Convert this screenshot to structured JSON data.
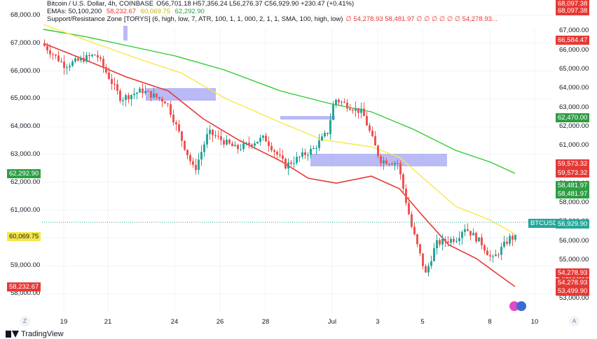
{
  "legend": {
    "line1": "Bitcoin / U.S. Dollar, 4h, COINBASE",
    "ohlc": "O56,701.18 H57,356.24 L56,276.37 C56,929.90 +230.47 (+0.41%)",
    "emas_label": "EMAs: 50,100,200",
    "ema_values": [
      "58,232.67",
      "60,069.75",
      "62,292.90"
    ],
    "line3": "Support/Resistance Zone [TORYS] (6, high, low, 7, ATR, 100, 1, 1, 000, 2, 1, 1, SMA, 100, high, low)",
    "sr_values": "∅ 54,278.93 58,481.97 ∅ ∅ ∅ ∅ ∅ ∅ 54,278.93..."
  },
  "y_axis": [
    "68,000.00",
    "67,000.00",
    "66,000.00",
    "65,000.00",
    "64,000.00",
    "63,000.00",
    "62,000.00",
    "61,000.00",
    "60,000.00",
    "59,000.00",
    "58,000.00",
    "57,000.00",
    "56,000.00",
    "55,000.00",
    "54,000.00",
    "53,000.00"
  ],
  "left_axis": [
    "68,000.00",
    "67,000.00",
    "66,000.00",
    "65,000.00",
    "64,000.00",
    "63,000.00",
    "62,000.00",
    "61,000.00",
    "60,000.00",
    "59,000.00",
    "58,000.00"
  ],
  "x_axis": [
    "19",
    "21",
    "24",
    "26",
    "28",
    "Jul",
    "3",
    "5",
    "8",
    "10"
  ],
  "left_tags": [
    {
      "text": "62,292.90",
      "color": "#2e9e44"
    },
    {
      "text": "60,069.75",
      "color": "#f5e84a"
    },
    {
      "text": "58,232.67",
      "color": "#e53935"
    }
  ],
  "right_tags": [
    {
      "text": "68,097.38",
      "color": "#e53935"
    },
    {
      "text": "68,097.38",
      "color": "#e53935"
    },
    {
      "text": "66,584.47",
      "color": "#e53935"
    },
    {
      "text": "62,470.00",
      "color": "#2e9e44"
    },
    {
      "text": "59,573.32",
      "color": "#e53935"
    },
    {
      "text": "59,573.32",
      "color": "#e53935"
    },
    {
      "text": "58,481.97",
      "color": "#2e9e44"
    },
    {
      "text": "58,481.97",
      "color": "#2e9e44"
    },
    {
      "text": "BTCUSD",
      "color": "#26a69a"
    },
    {
      "text": "56,929.90",
      "color": "#26a69a"
    },
    {
      "text": "54,278.93",
      "color": "#e53935"
    },
    {
      "text": "54,278.93",
      "color": "#e53935"
    },
    {
      "text": "53,499.90",
      "color": "#e53935"
    }
  ],
  "corner_left": "Z",
  "corner_right": "A",
  "footer": "TradingView",
  "colors": {
    "up": "#26a69a",
    "down": "#ef5350",
    "ema50": "#e53935",
    "ema100": "#f5e84a",
    "ema200": "#2ecc2e",
    "zone": "#8c8cf0"
  }
}
